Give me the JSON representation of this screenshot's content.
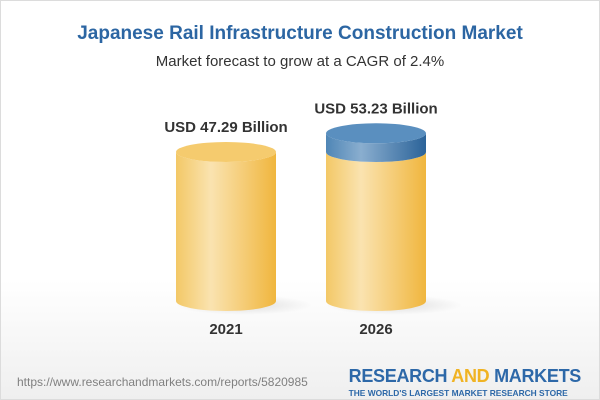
{
  "chart_data": {
    "type": "bar",
    "style": "3d-cylinder",
    "title": "Japanese Rail Infrastructure Construction Market",
    "subtitle": "Market forecast to grow at a CAGR of 2.4%",
    "categories": [
      "2021",
      "2026"
    ],
    "values": [
      47.29,
      53.23
    ],
    "data_labels": [
      "USD 47.29 Billion",
      "USD 53.23 Billion"
    ],
    "unit": "USD Billion",
    "cagr": "2.4%",
    "grid": false,
    "colors": {
      "base": "#f2c04e",
      "growth": "#4f86b6",
      "title": "#2c66a3"
    }
  },
  "footer": {
    "url": "https://www.researchandmarkets.com/reports/5820985",
    "logo_part1": "RESEARCH ",
    "logo_part2": "AND",
    "logo_part3": " MARKETS",
    "logo_tagline": "THE WORLD'S LARGEST MARKET RESEARCH STORE"
  }
}
